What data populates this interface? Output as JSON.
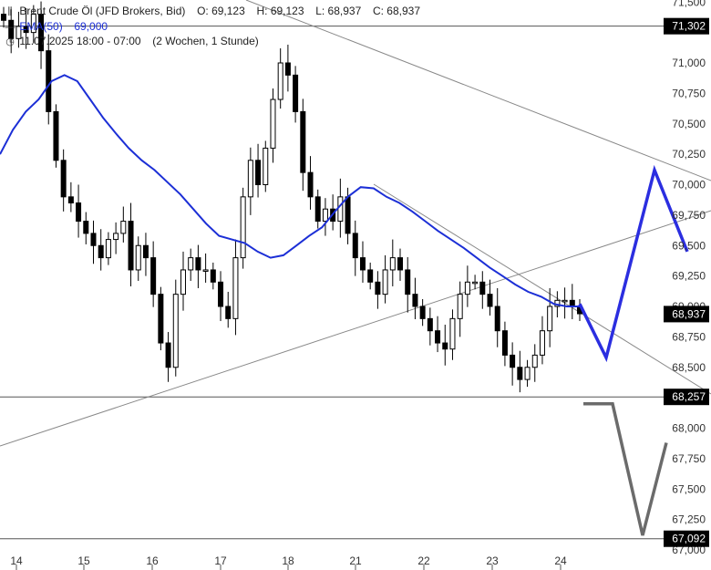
{
  "header": {
    "instrument": "Brent Crude Öl (JFD Brokers, Bid)",
    "open": "O: 69,123",
    "high": "H: 69,123",
    "low": "L: 68,937",
    "close": "C: 68,937",
    "ema_label": "EMA(50)",
    "ema_value": "69,000",
    "timerange": "11.07.2025 18:00 - 07:00",
    "interval": "(2 Wochen, 1 Stunde)"
  },
  "colors": {
    "candle": "#000000",
    "ema": "#1c2fd6",
    "projection_up": "#2b2ee0",
    "projection_down": "#6b6b6b",
    "trendline": "#888888",
    "tag_bg": "#000000",
    "tag_text": "#ffffff"
  },
  "chart_data": {
    "type": "candlestick",
    "instrument": "Brent Crude Öl",
    "ylim": [
      66.95,
      71.6
    ],
    "y_ticks": [
      "71,500",
      "71,000",
      "70,750",
      "70,500",
      "70,250",
      "70,000",
      "69,750",
      "69,500",
      "69,250",
      "69,000",
      "68,750",
      "68,500",
      "68,000",
      "67,750",
      "67,500",
      "67,250",
      "67,000"
    ],
    "x_ticks": [
      "14",
      "15",
      "16",
      "17",
      "18",
      "21",
      "22",
      "23",
      "24"
    ],
    "price_tags": [
      "71,302",
      "68,937",
      "68,257",
      "67,092"
    ],
    "horizontal_levels": [
      71.302,
      68.257,
      67.092
    ],
    "ema_series": {
      "name": "EMA(50)",
      "values": [
        70.25,
        70.45,
        70.6,
        70.7,
        70.85,
        70.9,
        70.85,
        70.7,
        70.55,
        70.42,
        70.3,
        70.2,
        70.12,
        70.02,
        69.92,
        69.8,
        69.68,
        69.58,
        69.55,
        69.52,
        69.45,
        69.4,
        69.42,
        69.5,
        69.58,
        69.65,
        69.78,
        69.9,
        69.98,
        69.97,
        69.9,
        69.85,
        69.78,
        69.7,
        69.62,
        69.55,
        69.48,
        69.4,
        69.32,
        69.25,
        69.18,
        69.12,
        69.08,
        69.02,
        69.0,
        69.0
      ]
    },
    "candles_close": [
      71.35,
      71.2,
      71.3,
      71.25,
      71.4,
      71.1,
      70.6,
      70.2,
      69.9,
      69.85,
      69.7,
      69.6,
      69.5,
      69.4,
      69.55,
      69.6,
      69.7,
      69.3,
      69.5,
      69.4,
      69.1,
      68.7,
      68.5,
      69.1,
      69.3,
      69.4,
      69.3,
      69.3,
      69.2,
      69.0,
      68.9,
      69.4,
      69.9,
      70.2,
      70.0,
      70.3,
      70.7,
      71.0,
      70.9,
      70.6,
      70.1,
      69.9,
      69.7,
      69.8,
      69.7,
      69.9,
      69.6,
      69.4,
      69.3,
      69.2,
      69.1,
      69.3,
      69.4,
      69.3,
      69.1,
      69.0,
      68.9,
      68.8,
      68.7,
      68.65,
      68.9,
      69.1,
      69.2,
      69.2,
      69.1,
      69.0,
      68.8,
      68.6,
      68.5,
      68.4,
      68.5,
      68.6,
      68.8,
      69.0,
      69.05,
      69.05,
      69.0,
      68.94
    ],
    "trendlines": [
      {
        "from": [
          "17.5",
          71.68
        ],
        "to": [
          "24+",
          70.02
        ]
      },
      {
        "from": [
          "14",
          67.87
        ],
        "to": [
          "24+",
          69.8
        ]
      },
      {
        "from": [
          "20.9",
          70.05
        ],
        "to": [
          "24+",
          68.47
        ]
      }
    ],
    "projections": [
      {
        "label": "",
        "points": [
          69.02,
          68.58,
          70.12,
          69.45
        ]
      },
      {
        "label": "",
        "points": [
          68.2,
          68.2,
          67.12,
          67.88
        ]
      }
    ]
  }
}
